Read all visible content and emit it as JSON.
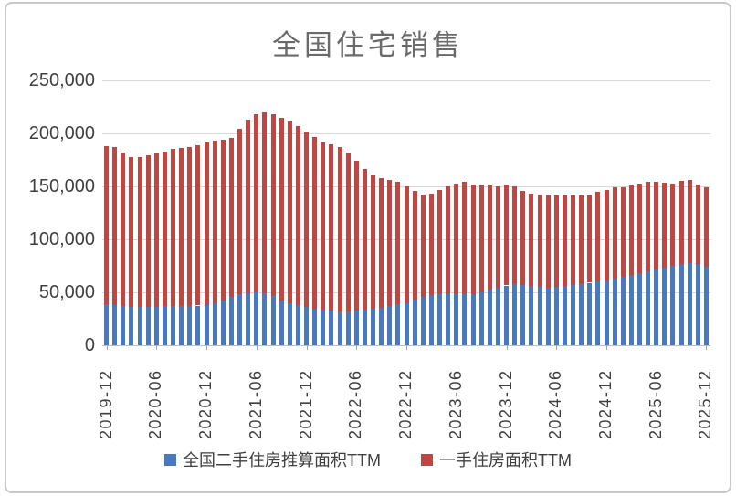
{
  "title": "全国住宅销售",
  "legend": [
    {
      "label": "全国二手住房推算面积TTM",
      "color": "#4879BD"
    },
    {
      "label": "一手住房面积TTM",
      "color": "#BC4743"
    }
  ],
  "y_axis": {
    "tick_labels": [
      "250,000",
      "200,000",
      "150,000",
      "100,000",
      "50,000",
      "0"
    ],
    "max": 250000,
    "min": 0,
    "step": 50000
  },
  "x_axis": {
    "tick_labels": [
      "2019-12",
      "2020-06",
      "2020-12",
      "2021-06",
      "2021-12",
      "2022-06",
      "2022-12",
      "2023-06",
      "2023-12",
      "2024-06",
      "2024-12",
      "2025-06",
      "2025-12"
    ],
    "label_every_n_months": 6
  },
  "chart_data": {
    "type": "bar",
    "stacked": true,
    "title": "全国住宅销售",
    "xlabel": "",
    "ylabel": "",
    "ylim": [
      0,
      250000
    ],
    "grid": "horizontal",
    "legend_position": "bottom",
    "categories": [
      "2019-12",
      "2020-01",
      "2020-02",
      "2020-03",
      "2020-04",
      "2020-05",
      "2020-06",
      "2020-07",
      "2020-08",
      "2020-09",
      "2020-10",
      "2020-11",
      "2020-12",
      "2021-01",
      "2021-02",
      "2021-03",
      "2021-04",
      "2021-05",
      "2021-06",
      "2021-07",
      "2021-08",
      "2021-09",
      "2021-10",
      "2021-11",
      "2021-12",
      "2022-01",
      "2022-02",
      "2022-03",
      "2022-04",
      "2022-05",
      "2022-06",
      "2022-07",
      "2022-08",
      "2022-09",
      "2022-10",
      "2022-11",
      "2022-12",
      "2023-01",
      "2023-02",
      "2023-03",
      "2023-04",
      "2023-05",
      "2023-06",
      "2023-07",
      "2023-08",
      "2023-09",
      "2023-10",
      "2023-11",
      "2023-12",
      "2024-01",
      "2024-02",
      "2024-03",
      "2024-04",
      "2024-05",
      "2024-06",
      "2024-07",
      "2024-08",
      "2024-09",
      "2024-10",
      "2024-11",
      "2024-12",
      "2025-01",
      "2025-02",
      "2025-03",
      "2025-04",
      "2025-05",
      "2025-06",
      "2025-07",
      "2025-08",
      "2025-09",
      "2025-10",
      "2025-11",
      "2025-12"
    ],
    "series": [
      {
        "name": "全国二手住房推算面积TTM",
        "color": "#4879BD",
        "values": [
          38500,
          38000,
          37000,
          36500,
          36000,
          36000,
          36500,
          37000,
          37000,
          37000,
          37000,
          37500,
          38000,
          40000,
          42500,
          45500,
          48000,
          49500,
          50000,
          49000,
          46500,
          42000,
          40000,
          38000,
          36000,
          34500,
          33500,
          33000,
          32000,
          32000,
          32500,
          33500,
          34500,
          35500,
          37000,
          38500,
          40000,
          43000,
          45500,
          47500,
          48000,
          48500,
          48000,
          48000,
          48500,
          50000,
          52500,
          54500,
          56500,
          57500,
          57000,
          56000,
          55000,
          54500,
          55000,
          56000,
          57000,
          58000,
          59000,
          60500,
          61500,
          63000,
          64500,
          66000,
          68000,
          70000,
          71500,
          73500,
          75000,
          76500,
          77500,
          76500,
          74500
        ]
      },
      {
        "name": "一手住房面积TTM",
        "color": "#BC4743",
        "values": [
          149500,
          149500,
          145000,
          141500,
          141500,
          143500,
          145000,
          146000,
          148000,
          149500,
          150500,
          151500,
          153000,
          153000,
          151500,
          150500,
          156500,
          163500,
          168000,
          170500,
          172000,
          173000,
          171000,
          169000,
          166000,
          162000,
          157500,
          156500,
          155500,
          150000,
          141500,
          132500,
          125500,
          122000,
          119000,
          116000,
          110000,
          103000,
          96500,
          96000,
          98500,
          101500,
          105000,
          106000,
          103000,
          101000,
          98000,
          95500,
          95000,
          92500,
          89000,
          87500,
          87500,
          86500,
          86000,
          85000,
          84500,
          83500,
          82000,
          84000,
          85500,
          86500,
          84500,
          85000,
          85000,
          84000,
          82500,
          80000,
          78000,
          79000,
          78500,
          75500,
          75000
        ]
      }
    ]
  }
}
